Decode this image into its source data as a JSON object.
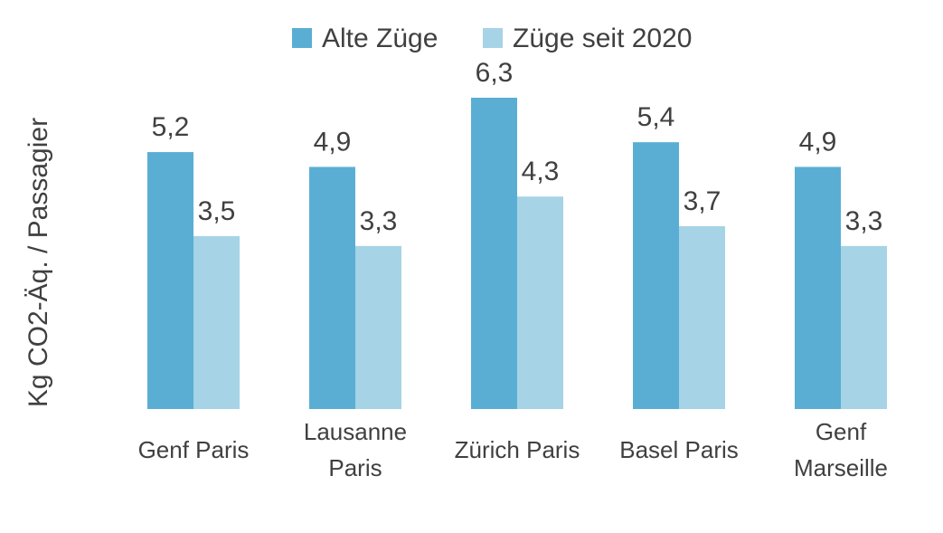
{
  "chart_data": {
    "type": "bar",
    "title": "",
    "xlabel": "",
    "ylabel": "Kg CO2-Äq. / Passagier",
    "ylim": [
      0,
      6.3
    ],
    "grid": false,
    "legend_position": "top",
    "categories": [
      [
        "Genf Paris"
      ],
      [
        "Lausanne",
        "Paris"
      ],
      [
        "Zürich Paris"
      ],
      [
        "Basel Paris"
      ],
      [
        "Genf",
        "Marseille"
      ]
    ],
    "series": [
      {
        "name": "Alte Züge",
        "color": "#5aaed4",
        "values": [
          5.2,
          4.9,
          6.3,
          5.4,
          4.9
        ],
        "labels": [
          "5,2",
          "4,9",
          "6,3",
          "5,4",
          "4,9"
        ]
      },
      {
        "name": "Züge seit 2020",
        "color": "#a6d3e6",
        "values": [
          3.5,
          3.3,
          4.3,
          3.7,
          3.3
        ],
        "labels": [
          "3,5",
          "3,3",
          "4,3",
          "3,7",
          "3,3"
        ]
      }
    ]
  }
}
